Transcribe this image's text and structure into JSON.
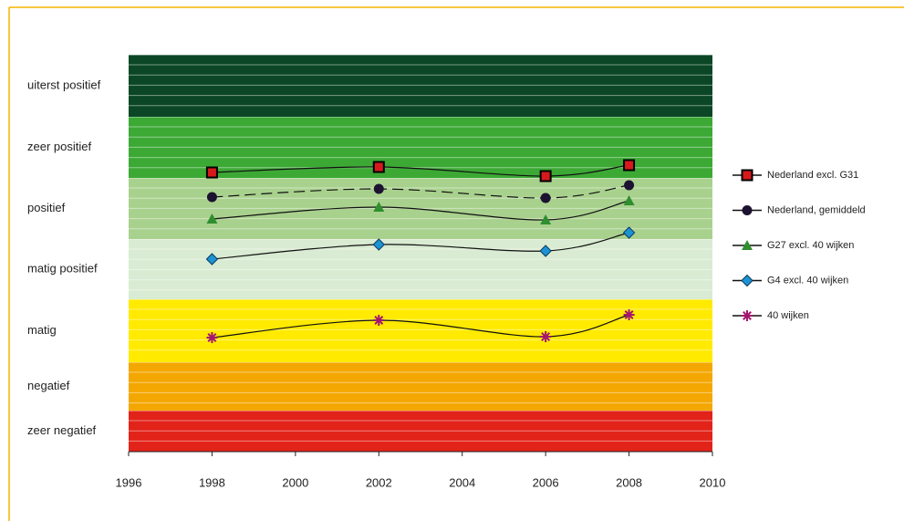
{
  "chart_data": {
    "type": "line",
    "xlim": [
      1996,
      2010
    ],
    "xticks": [
      1996,
      1998,
      2000,
      2002,
      2004,
      2006,
      2008,
      2010
    ],
    "ylim": [
      0,
      43.5
    ],
    "bands": [
      {
        "label": "zeer negatief",
        "from": 0,
        "to": 4.5,
        "color": "#e2231a"
      },
      {
        "label": "negatief",
        "from": 4.5,
        "to": 9.8,
        "color": "#f4a700"
      },
      {
        "label": "matig",
        "from": 9.8,
        "to": 16.7,
        "color": "#ffea00"
      },
      {
        "label": "matig positief",
        "from": 16.7,
        "to": 23.3,
        "color": "#d9ebd2"
      },
      {
        "label": "positief",
        "from": 23.3,
        "to": 30,
        "color": "#a9d18e"
      },
      {
        "label": "zeer positief",
        "from": 30,
        "to": 36.7,
        "color": "#3ca935"
      },
      {
        "label": "uiterst positief",
        "from": 36.7,
        "to": 43.5,
        "color": "#0b4726"
      }
    ],
    "x": [
      1998,
      2002,
      2006,
      2008
    ],
    "legend": "right",
    "series": [
      {
        "name": "Nederland excl. G31",
        "color": "#d7191c",
        "marker": "square",
        "dashed": false,
        "values": [
          30.6,
          31.2,
          30.2,
          31.4
        ]
      },
      {
        "name": "Nederland, gemiddeld",
        "color": "#1d1230",
        "marker": "circle",
        "dashed": true,
        "values": [
          27.9,
          28.8,
          27.8,
          29.2
        ]
      },
      {
        "name": "G27 excl. 40 wijken",
        "color": "#2f8f2f",
        "marker": "triangle",
        "dashed": false,
        "values": [
          25.5,
          26.8,
          25.4,
          27.5
        ]
      },
      {
        "name": "G4 excl. 40 wijken",
        "color": "#1d93d3",
        "marker": "diamond",
        "dashed": false,
        "values": [
          21.1,
          22.7,
          22.0,
          24.0
        ]
      },
      {
        "name": "40 wijken",
        "color": "#a3176f",
        "marker": "star",
        "dashed": false,
        "values": [
          12.5,
          14.4,
          12.6,
          15.0
        ]
      }
    ]
  }
}
